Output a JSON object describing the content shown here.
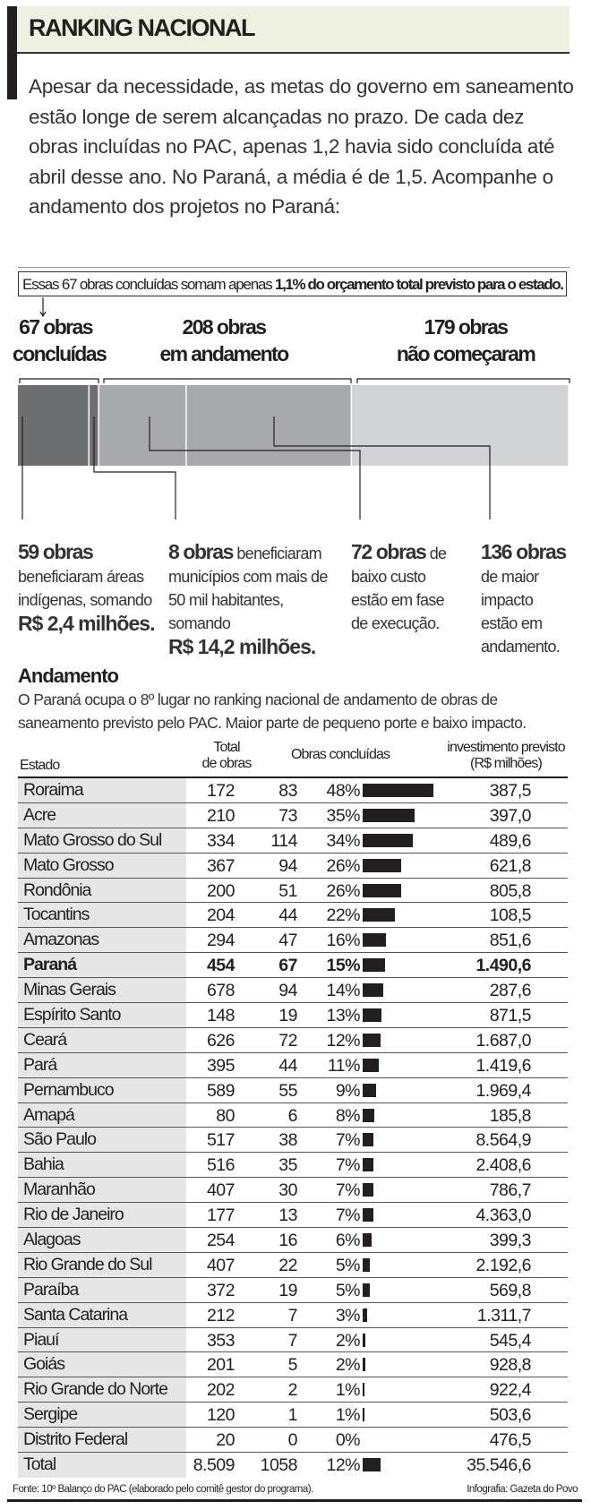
{
  "header": {
    "title": "RANKING NACIONAL"
  },
  "intro": "Apesar da necessidade, as metas do governo em saneamento estão longe de serem alcançadas no prazo. De cada dez obras incluídas no PAC, apenas 1,2 havia sido concluída até abril desse ano. No Paraná, a média é de 1,5. Acompanhe o andamento dos projetos no Paraná:",
  "note": {
    "text": "Essas 67 obras concluídas somam apenas ",
    "highlight": "1,1% do orçamento total previsto para o estado."
  },
  "groups": [
    {
      "line1": "67 obras",
      "line2": "concluídas",
      "total": 67
    },
    {
      "line1": "208 obras",
      "line2": "em andamento",
      "total": 208
    },
    {
      "line1": "179 obras",
      "line2": "não começaram",
      "total": 179
    }
  ],
  "segments": [
    {
      "value": 59,
      "color": "#6d6e70"
    },
    {
      "value": 8,
      "color": "#6d6e70"
    },
    {
      "value": 72,
      "color": "#a7a9ac"
    },
    {
      "value": 136,
      "color": "#a7a9ac"
    },
    {
      "value": 179,
      "color": "#d1d3d4"
    }
  ],
  "callouts": [
    {
      "bold": "59 obras",
      "text": "beneficiaram áreas indígenas, somando",
      "amount": "R$ 2,4 milhões."
    },
    {
      "bold": "8 obras",
      "text": "beneficiaram municípios com mais de 50 mil habitantes, somando",
      "amount": "R$ 14,2 milhões."
    },
    {
      "bold": "72 obras",
      "text": "de baixo custo estão em fase de execução."
    },
    {
      "bold": "136 obras",
      "text": "de maior impacto estão em andamento."
    }
  ],
  "andamento": {
    "title": "Andamento",
    "subtitle": "O Paraná ocupa o 8º lugar no ranking nacional de andamento de obras de saneamento previsto pelo PAC. Maior parte de pequeno porte e baixo impacto."
  },
  "chart_data": {
    "type": "table",
    "columns": {
      "estado": "Estado",
      "total_l1": "Total",
      "total_l2": "de obras",
      "concluidas": "Obras concluídas",
      "inv_l1": "investimento previsto",
      "inv_l2": "(R$ milhões)"
    },
    "bar_series": "percent concluded",
    "rows": [
      {
        "estado": "Roraima",
        "total": "172",
        "concluidas": "83",
        "pct": 48,
        "pct_label": "48%",
        "inv": "387,5"
      },
      {
        "estado": "Acre",
        "total": "210",
        "concluidas": "73",
        "pct": 35,
        "pct_label": "35%",
        "inv": "397,0"
      },
      {
        "estado": "Mato Grosso do Sul",
        "total": "334",
        "concluidas": "114",
        "pct": 34,
        "pct_label": "34%",
        "inv": "489,6"
      },
      {
        "estado": "Mato Grosso",
        "total": "367",
        "concluidas": "94",
        "pct": 26,
        "pct_label": "26%",
        "inv": "621,8"
      },
      {
        "estado": "Rondônia",
        "total": "200",
        "concluidas": "51",
        "pct": 26,
        "pct_label": "26%",
        "inv": "805,8"
      },
      {
        "estado": "Tocantins",
        "total": "204",
        "concluidas": "44",
        "pct": 22,
        "pct_label": "22%",
        "inv": "108,5"
      },
      {
        "estado": "Amazonas",
        "total": "294",
        "concluidas": "47",
        "pct": 16,
        "pct_label": "16%",
        "inv": "851,6"
      },
      {
        "estado": "Paraná",
        "total": "454",
        "concluidas": "67",
        "pct": 15,
        "pct_label": "15%",
        "inv": "1.490,6",
        "bold": true
      },
      {
        "estado": "Minas Gerais",
        "total": "678",
        "concluidas": "94",
        "pct": 14,
        "pct_label": "14%",
        "inv": "287,6"
      },
      {
        "estado": "Espírito Santo",
        "total": "148",
        "concluidas": "19",
        "pct": 13,
        "pct_label": "13%",
        "inv": "871,5"
      },
      {
        "estado": "Ceará",
        "total": "626",
        "concluidas": "72",
        "pct": 12,
        "pct_label": "12%",
        "inv": "1.687,0"
      },
      {
        "estado": "Pará",
        "total": "395",
        "concluidas": "44",
        "pct": 11,
        "pct_label": "11%",
        "inv": "1.419,6"
      },
      {
        "estado": "Pernambuco",
        "total": "589",
        "concluidas": "55",
        "pct": 9,
        "pct_label": "9%",
        "inv": "1.969,4"
      },
      {
        "estado": "Amapá",
        "total": "80",
        "concluidas": "6",
        "pct": 8,
        "pct_label": "8%",
        "inv": "185,8"
      },
      {
        "estado": "São Paulo",
        "total": "517",
        "concluidas": "38",
        "pct": 7,
        "pct_label": "7%",
        "inv": "8.564,9"
      },
      {
        "estado": "Bahia",
        "total": "516",
        "concluidas": "35",
        "pct": 7,
        "pct_label": "7%",
        "inv": "2.408,6"
      },
      {
        "estado": "Maranhão",
        "total": "407",
        "concluidas": "30",
        "pct": 7,
        "pct_label": "7%",
        "inv": "786,7"
      },
      {
        "estado": "Rio de Janeiro",
        "total": "177",
        "concluidas": "13",
        "pct": 7,
        "pct_label": "7%",
        "inv": "4.363,0"
      },
      {
        "estado": "Alagoas",
        "total": "254",
        "concluidas": "16",
        "pct": 6,
        "pct_label": "6%",
        "inv": "399,3"
      },
      {
        "estado": "Rio Grande do Sul",
        "total": "407",
        "concluidas": "22",
        "pct": 5,
        "pct_label": "5%",
        "inv": "2.192,6"
      },
      {
        "estado": "Paraíba",
        "total": "372",
        "concluidas": "19",
        "pct": 5,
        "pct_label": "5%",
        "inv": "569,8"
      },
      {
        "estado": "Santa Catarina",
        "total": "212",
        "concluidas": "7",
        "pct": 3,
        "pct_label": "3%",
        "inv": "1.311,7"
      },
      {
        "estado": "Piauí",
        "total": "353",
        "concluidas": "7",
        "pct": 2,
        "pct_label": "2%",
        "inv": "545,4"
      },
      {
        "estado": "Goiás",
        "total": "201",
        "concluidas": "5",
        "pct": 2,
        "pct_label": "2%",
        "inv": "928,8"
      },
      {
        "estado": "Rio Grande do Norte",
        "total": "202",
        "concluidas": "2",
        "pct": 1,
        "pct_label": "1%",
        "inv": "922,4"
      },
      {
        "estado": "Sergipe",
        "total": "120",
        "concluidas": "1",
        "pct": 1,
        "pct_label": "1%",
        "inv": "503,6"
      },
      {
        "estado": "Distrito Federal",
        "total": "20",
        "concluidas": "0",
        "pct": 0,
        "pct_label": "0%",
        "inv": "476,5"
      },
      {
        "estado": "Total",
        "total": "8.509",
        "concluidas": "1058",
        "pct": 12,
        "pct_label": "12%",
        "inv": "35.546,6"
      }
    ]
  },
  "footer": {
    "source": "Fonte: 10º Balanço do PAC (elaborado pelo comitê gestor do programa).",
    "credit": "Infografia: Gazeta do Povo"
  }
}
